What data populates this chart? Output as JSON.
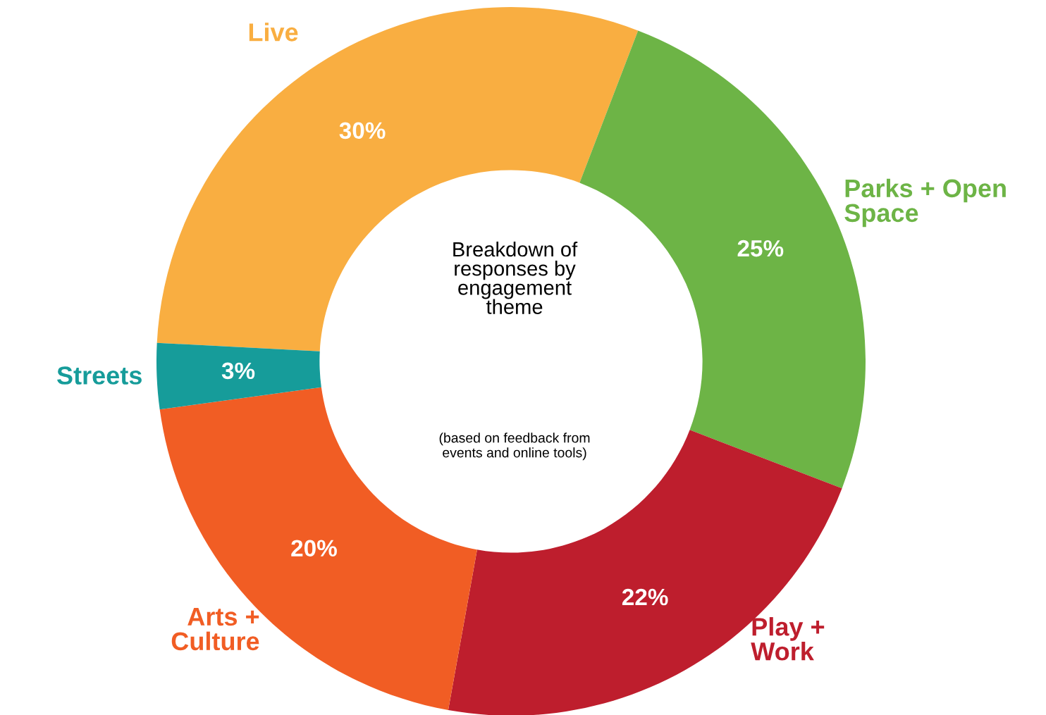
{
  "chart_data": {
    "type": "donut",
    "title": "Breakdown of\nresponses by\nengagement\ntheme",
    "subtitle": "(based on feedback from\nevents and online tools)",
    "categories": [
      "Live",
      "Parks + Open\nSpace",
      "Play +\nWork",
      "Arts +\nCulture",
      "Streets"
    ],
    "values": [
      30,
      25,
      22,
      20,
      3
    ],
    "value_labels": [
      "30%",
      "25%",
      "22%",
      "20%",
      "3%"
    ],
    "colors": [
      "#f9ae41",
      "#6db446",
      "#be1e2d",
      "#f15d24",
      "#169c9a"
    ],
    "legend": false
  }
}
